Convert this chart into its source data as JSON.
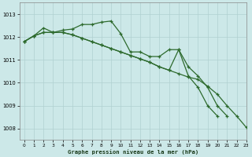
{
  "title": "Graphe pression niveau de la mer (hPa)",
  "bg_color": "#cce8e8",
  "grid_color": "#b0d0d0",
  "line_color": "#2d6a2d",
  "xlim": [
    -0.5,
    23
  ],
  "ylim": [
    1007.5,
    1013.5
  ],
  "yticks": [
    1008,
    1009,
    1010,
    1011,
    1012,
    1013
  ],
  "xticks": [
    0,
    1,
    2,
    3,
    4,
    5,
    6,
    7,
    8,
    9,
    10,
    11,
    12,
    13,
    14,
    15,
    16,
    17,
    18,
    19,
    20,
    21,
    22,
    23
  ],
  "series": [
    [
      1011.8,
      1012.05,
      1012.4,
      1012.2,
      1012.2,
      1012.1,
      1012.3,
      1012.55,
      1012.55,
      1012.65,
      1012.7,
      1012.15,
      1011.35,
      1011.35,
      null,
      null,
      1011.45,
      1011.45,
      null,
      null,
      null,
      null,
      null,
      null
    ],
    [
      1011.8,
      1012.05,
      1012.2,
      1012.2,
      1012.2,
      1012.05,
      1011.9,
      1011.8,
      1011.65,
      1011.5,
      1011.35,
      1011.2,
      1011.05,
      1010.9,
      1010.7,
      1010.55,
      1011.45,
      1010.7,
      1010.3,
      1009.8,
      1009.0,
      1008.55,
      null,
      null
    ],
    [
      1011.8,
      1012.05,
      1012.2,
      1012.2,
      1012.2,
      1012.1,
      1011.95,
      1011.8,
      1011.65,
      1011.5,
      1011.35,
      1011.2,
      1011.05,
      1010.9,
      1010.7,
      1010.55,
      1010.4,
      1010.25,
      1010.15,
      1009.85,
      1009.5,
      1009.0,
      1008.55,
      1008.05
    ]
  ],
  "series_top": [
    1011.8,
    1012.05,
    1012.4,
    1012.2,
    1012.2,
    1012.1,
    1012.3,
    1012.55,
    1012.55,
    1012.65,
    1012.7,
    1012.15,
    1011.35,
    1011.35,
    1011.15,
    1011.15,
    1011.45,
    1011.45,
    1010.3,
    1009.8,
    1009.0,
    1008.55,
    null,
    null
  ]
}
